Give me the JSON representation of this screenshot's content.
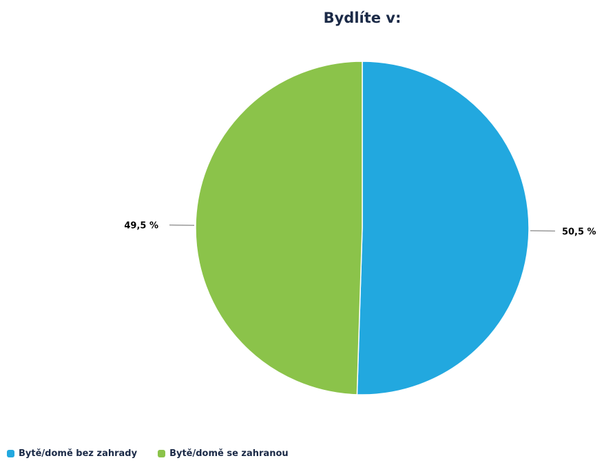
{
  "chart_data": {
    "type": "pie",
    "title": "Bydlíte v:",
    "categories": [
      "Bytě/domě bez zahrady",
      "Bytě/domě se zahranou"
    ],
    "values": [
      50.5,
      49.5
    ],
    "data_labels": [
      "50,5 %",
      "49,5 %"
    ],
    "colors": [
      "#22a8df",
      "#8bc34a"
    ],
    "start_angle_deg": 0,
    "direction": "clockwise",
    "legend_position": "bottom-left"
  }
}
